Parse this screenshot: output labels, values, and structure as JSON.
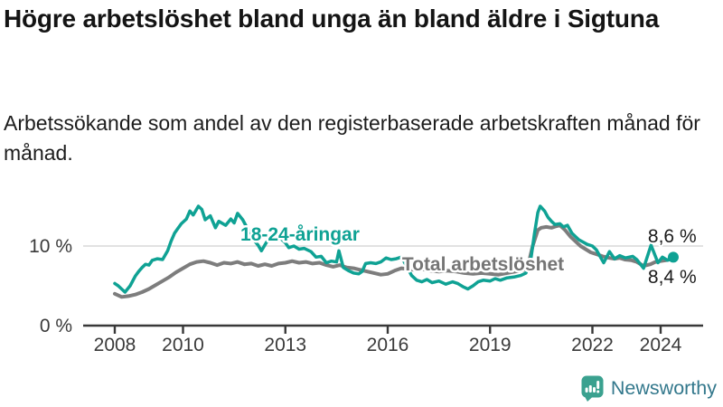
{
  "footer": {
    "brand": "Newsworthy"
  },
  "colors": {
    "young_line": "#0fa294",
    "total_line": "#7d7d7d",
    "total_label": "#757575",
    "axis": "#3a3a3a",
    "gridline": "#d9d9d9",
    "value_label": "#1a1a1a",
    "logo_icon": "#3aa18f",
    "logo_text": "#33788c"
  },
  "chart_data": {
    "type": "line",
    "title": "Högre arbetslöshet bland unga än bland äldre i Sigtuna",
    "subtitle": "Arbetssökande som andel av den registerbaserade arbetskraften månad för månad.",
    "unit": "%",
    "ylim": [
      0,
      16
    ],
    "x_range": [
      2008.0,
      2024.4
    ],
    "grid": "horizontal-only",
    "legend_position": "inline-labels",
    "x_ticks": [
      {
        "label": "2008",
        "x": 2008
      },
      {
        "label": "2010",
        "x": 2010
      },
      {
        "label": "2013",
        "x": 2013
      },
      {
        "label": "2016",
        "x": 2016
      },
      {
        "label": "2019",
        "x": 2019
      },
      {
        "label": "2022",
        "x": 2022
      },
      {
        "label": "2024",
        "x": 2024
      }
    ],
    "y_ticks": [
      {
        "label": "0 %",
        "value": 0
      },
      {
        "label": "10 %",
        "value": 10
      }
    ],
    "series": [
      {
        "name": "Total arbetslöshet",
        "color": "#7d7d7d",
        "end_value_label": "8,4 %",
        "points": [
          [
            2008.0,
            4.0
          ],
          [
            2008.2,
            3.6
          ],
          [
            2008.4,
            3.7
          ],
          [
            2008.6,
            3.9
          ],
          [
            2008.8,
            4.2
          ],
          [
            2009.0,
            4.6
          ],
          [
            2009.2,
            5.1
          ],
          [
            2009.4,
            5.6
          ],
          [
            2009.6,
            6.1
          ],
          [
            2009.8,
            6.7
          ],
          [
            2010.0,
            7.2
          ],
          [
            2010.2,
            7.7
          ],
          [
            2010.4,
            8.0
          ],
          [
            2010.6,
            8.1
          ],
          [
            2010.8,
            7.9
          ],
          [
            2011.0,
            7.6
          ],
          [
            2011.2,
            7.9
          ],
          [
            2011.4,
            7.8
          ],
          [
            2011.6,
            8.0
          ],
          [
            2011.8,
            7.7
          ],
          [
            2012.0,
            7.8
          ],
          [
            2012.2,
            7.5
          ],
          [
            2012.4,
            7.7
          ],
          [
            2012.6,
            7.5
          ],
          [
            2012.8,
            7.8
          ],
          [
            2013.0,
            7.9
          ],
          [
            2013.2,
            8.1
          ],
          [
            2013.4,
            7.9
          ],
          [
            2013.6,
            8.0
          ],
          [
            2013.8,
            7.8
          ],
          [
            2014.0,
            7.9
          ],
          [
            2014.2,
            7.6
          ],
          [
            2014.4,
            7.4
          ],
          [
            2014.6,
            7.6
          ],
          [
            2014.8,
            7.3
          ],
          [
            2015.0,
            7.2
          ],
          [
            2015.2,
            7.0
          ],
          [
            2015.4,
            6.8
          ],
          [
            2015.6,
            6.6
          ],
          [
            2015.8,
            6.4
          ],
          [
            2016.0,
            6.5
          ],
          [
            2016.2,
            6.9
          ],
          [
            2016.4,
            7.2
          ],
          [
            2016.6,
            7.1
          ],
          [
            2016.8,
            7.0
          ],
          [
            2017.0,
            7.1
          ],
          [
            2017.25,
            6.9
          ],
          [
            2017.5,
            6.8
          ],
          [
            2017.75,
            6.9
          ],
          [
            2018.0,
            6.8
          ],
          [
            2018.25,
            6.6
          ],
          [
            2018.5,
            6.5
          ],
          [
            2018.75,
            6.6
          ],
          [
            2019.0,
            6.5
          ],
          [
            2019.25,
            6.4
          ],
          [
            2019.5,
            6.6
          ],
          [
            2019.75,
            6.8
          ],
          [
            2020.0,
            7.0
          ],
          [
            2020.1,
            7.3
          ],
          [
            2020.25,
            10.0
          ],
          [
            2020.4,
            12.0
          ],
          [
            2020.5,
            12.3
          ],
          [
            2020.65,
            12.4
          ],
          [
            2020.8,
            12.3
          ],
          [
            2020.95,
            12.5
          ],
          [
            2021.05,
            12.6
          ],
          [
            2021.2,
            12.0
          ],
          [
            2021.35,
            11.2
          ],
          [
            2021.5,
            10.6
          ],
          [
            2021.65,
            10.0
          ],
          [
            2021.8,
            9.6
          ],
          [
            2021.95,
            9.2
          ],
          [
            2022.1,
            9.0
          ],
          [
            2022.3,
            8.7
          ],
          [
            2022.5,
            8.5
          ],
          [
            2022.65,
            8.4
          ],
          [
            2022.8,
            8.5
          ],
          [
            2022.95,
            8.3
          ],
          [
            2023.15,
            8.2
          ],
          [
            2023.3,
            8.0
          ],
          [
            2023.5,
            7.5
          ],
          [
            2023.7,
            7.7
          ],
          [
            2023.85,
            8.0
          ],
          [
            2024.0,
            8.1
          ],
          [
            2024.15,
            8.2
          ],
          [
            2024.37,
            8.4
          ]
        ]
      },
      {
        "name": "18-24-åringar",
        "color": "#0fa294",
        "end_value_label": "8,6 %",
        "points": [
          [
            2008.0,
            5.3
          ],
          [
            2008.1,
            5.0
          ],
          [
            2008.3,
            4.2
          ],
          [
            2008.45,
            5.0
          ],
          [
            2008.6,
            6.2
          ],
          [
            2008.7,
            6.8
          ],
          [
            2008.8,
            7.3
          ],
          [
            2008.9,
            7.7
          ],
          [
            2009.0,
            7.6
          ],
          [
            2009.1,
            8.2
          ],
          [
            2009.25,
            8.4
          ],
          [
            2009.4,
            8.3
          ],
          [
            2009.55,
            9.4
          ],
          [
            2009.65,
            10.6
          ],
          [
            2009.75,
            11.6
          ],
          [
            2009.85,
            12.2
          ],
          [
            2009.95,
            12.8
          ],
          [
            2010.1,
            13.4
          ],
          [
            2010.2,
            14.4
          ],
          [
            2010.3,
            13.9
          ],
          [
            2010.45,
            15.0
          ],
          [
            2010.55,
            14.6
          ],
          [
            2010.65,
            13.3
          ],
          [
            2010.8,
            13.8
          ],
          [
            2010.95,
            12.3
          ],
          [
            2011.05,
            13.1
          ],
          [
            2011.25,
            12.6
          ],
          [
            2011.4,
            13.4
          ],
          [
            2011.5,
            12.9
          ],
          [
            2011.6,
            14.1
          ],
          [
            2011.75,
            13.3
          ],
          [
            2011.9,
            12.1
          ],
          [
            2012.05,
            10.9
          ],
          [
            2012.2,
            10.1
          ],
          [
            2012.3,
            9.4
          ],
          [
            2012.45,
            10.5
          ],
          [
            2012.6,
            10.9
          ],
          [
            2012.8,
            11.2
          ],
          [
            2012.9,
            10.8
          ],
          [
            2013.0,
            10.4
          ],
          [
            2013.1,
            9.8
          ],
          [
            2013.25,
            10.0
          ],
          [
            2013.4,
            9.6
          ],
          [
            2013.55,
            9.7
          ],
          [
            2013.75,
            9.3
          ],
          [
            2013.9,
            8.6
          ],
          [
            2014.05,
            8.7
          ],
          [
            2014.2,
            7.9
          ],
          [
            2014.35,
            8.1
          ],
          [
            2014.5,
            8.0
          ],
          [
            2014.57,
            9.4
          ],
          [
            2014.7,
            7.3
          ],
          [
            2014.85,
            6.9
          ],
          [
            2015.0,
            6.6
          ],
          [
            2015.15,
            6.5
          ],
          [
            2015.25,
            6.8
          ],
          [
            2015.35,
            7.8
          ],
          [
            2015.5,
            7.9
          ],
          [
            2015.65,
            7.8
          ],
          [
            2015.8,
            8.0
          ],
          [
            2015.95,
            8.5
          ],
          [
            2016.1,
            8.3
          ],
          [
            2016.25,
            8.4
          ],
          [
            2016.4,
            8.6
          ],
          [
            2016.55,
            7.5
          ],
          [
            2016.7,
            6.3
          ],
          [
            2016.85,
            5.7
          ],
          [
            2017.0,
            5.5
          ],
          [
            2017.15,
            5.8
          ],
          [
            2017.3,
            5.4
          ],
          [
            2017.5,
            5.6
          ],
          [
            2017.7,
            5.2
          ],
          [
            2017.9,
            5.5
          ],
          [
            2018.05,
            5.3
          ],
          [
            2018.2,
            4.9
          ],
          [
            2018.35,
            4.6
          ],
          [
            2018.5,
            5.0
          ],
          [
            2018.65,
            5.5
          ],
          [
            2018.8,
            5.7
          ],
          [
            2019.0,
            5.6
          ],
          [
            2019.15,
            5.9
          ],
          [
            2019.3,
            5.7
          ],
          [
            2019.5,
            6.0
          ],
          [
            2019.7,
            6.1
          ],
          [
            2019.9,
            6.3
          ],
          [
            2020.05,
            6.6
          ],
          [
            2020.2,
            8.5
          ],
          [
            2020.3,
            11.5
          ],
          [
            2020.4,
            14.2
          ],
          [
            2020.47,
            15.0
          ],
          [
            2020.6,
            14.4
          ],
          [
            2020.7,
            13.6
          ],
          [
            2020.8,
            13.1
          ],
          [
            2020.9,
            12.7
          ],
          [
            2021.05,
            12.8
          ],
          [
            2021.15,
            12.4
          ],
          [
            2021.27,
            12.6
          ],
          [
            2021.4,
            11.6
          ],
          [
            2021.6,
            10.8
          ],
          [
            2021.85,
            10.2
          ],
          [
            2022.0,
            10.0
          ],
          [
            2022.12,
            9.5
          ],
          [
            2022.25,
            8.5
          ],
          [
            2022.33,
            7.9
          ],
          [
            2022.5,
            9.3
          ],
          [
            2022.65,
            8.4
          ],
          [
            2022.8,
            8.8
          ],
          [
            2022.97,
            8.5
          ],
          [
            2023.18,
            8.7
          ],
          [
            2023.3,
            8.3
          ],
          [
            2023.5,
            7.2
          ],
          [
            2023.72,
            10.1
          ],
          [
            2023.92,
            7.9
          ],
          [
            2024.05,
            8.6
          ],
          [
            2024.2,
            8.2
          ],
          [
            2024.37,
            8.6
          ]
        ]
      }
    ],
    "annotations": [
      {
        "text": "18-24-åringar",
        "x": 2013.43,
        "y": 11.5,
        "color": "#0fa294",
        "anchor": "middle",
        "bold": true
      },
      {
        "text": "Total arbetslöshet",
        "x": 2016.42,
        "y": 7.7,
        "color": "#757575",
        "anchor": "start",
        "bold": true
      },
      {
        "text": "8,6 %",
        "x": 2025.05,
        "y": 11.25,
        "color": "#1a1a1a",
        "anchor": "end",
        "bold": false
      },
      {
        "text": "8,4 %",
        "x": 2025.05,
        "y": 6.14,
        "color": "#1a1a1a",
        "anchor": "end",
        "bold": false
      }
    ],
    "end_dot": {
      "series": 1,
      "radius": 6
    }
  }
}
